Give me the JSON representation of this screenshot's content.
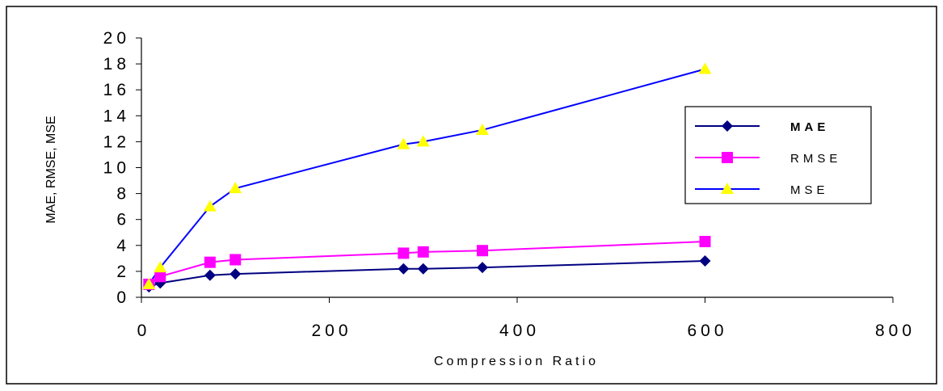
{
  "chart_data": {
    "type": "line",
    "xlabel": "Compression Ratio",
    "ylabel": "MAE, RMSE, MSE",
    "xlim": [
      0,
      800
    ],
    "ylim": [
      0,
      20
    ],
    "x_ticks": [
      "0",
      "200",
      "400",
      "600",
      "800"
    ],
    "y_ticks": [
      "0",
      "2",
      "4",
      "6",
      "8",
      "10",
      "12",
      "14",
      "16",
      "18",
      "20"
    ],
    "grid": false,
    "legend_position": "right",
    "series": [
      {
        "name": "MAE",
        "marker": "diamond",
        "color": "#000080",
        "marker_color": "#000080",
        "x": [
          8,
          20,
          73,
          100,
          279,
          300,
          363,
          600
        ],
        "y": [
          0.8,
          1.1,
          1.7,
          1.8,
          2.2,
          2.2,
          2.3,
          2.8
        ]
      },
      {
        "name": "RMSE",
        "marker": "square",
        "color": "#ff00ff",
        "marker_color": "#ff00ff",
        "x": [
          8,
          20,
          73,
          100,
          279,
          300,
          363,
          600
        ],
        "y": [
          1.0,
          1.6,
          2.7,
          2.9,
          3.4,
          3.5,
          3.6,
          4.3
        ]
      },
      {
        "name": "MSE",
        "marker": "triangle",
        "color": "#0000ff",
        "marker_color": "#ffff00",
        "x": [
          8,
          20,
          73,
          100,
          279,
          300,
          363,
          600
        ],
        "y": [
          1.0,
          2.3,
          7.0,
          8.4,
          11.8,
          12.0,
          12.9,
          17.6
        ]
      }
    ]
  }
}
